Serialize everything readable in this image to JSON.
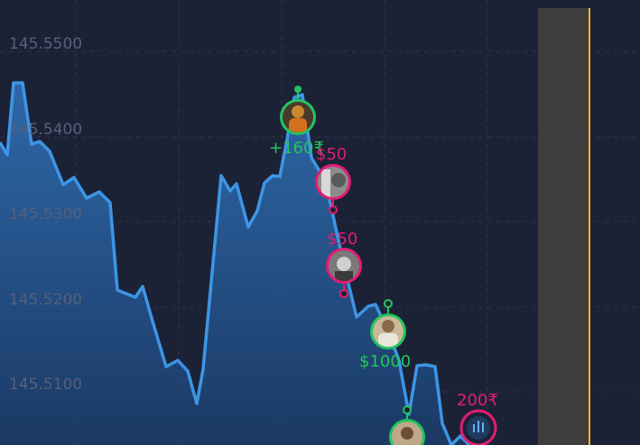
{
  "chart": {
    "y_axis_labels": [
      "145.5500",
      "145.5400",
      "145.5300",
      "145.5200",
      "145.5100"
    ],
    "line_color": "#3d95e6",
    "expiry_line_color": "#f6b83a",
    "win_color": "#22c55e",
    "loss_color": "#e11d74"
  },
  "trades": [
    {
      "label": "+160₹",
      "result": "win"
    },
    {
      "label": "$50",
      "result": "loss"
    },
    {
      "label": "$50",
      "result": "loss"
    },
    {
      "label": "$1000",
      "result": "win"
    },
    {
      "label": "200₹",
      "result": "loss"
    }
  ]
}
